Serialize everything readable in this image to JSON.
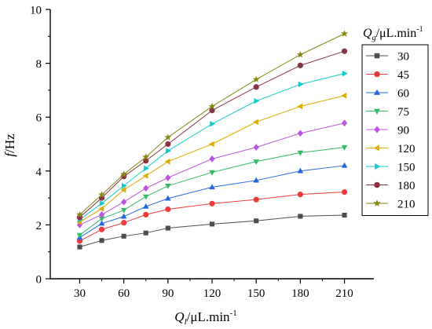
{
  "chart_data": {
    "type": "line",
    "title": "",
    "xlabel": {
      "base": "Q",
      "sub": "l",
      "unit": "/μL.min",
      "sup": "-1"
    },
    "ylabel": {
      "italic": "f",
      "unit": "/Hz"
    },
    "legend_title": {
      "base": "Q",
      "sub": "g",
      "unit": "/μL.min",
      "sup": "-1"
    },
    "legend_position": "top-right",
    "xlim": [
      10,
      230
    ],
    "ylim": [
      0,
      10
    ],
    "x_ticks": [
      30,
      60,
      90,
      120,
      150,
      180,
      210
    ],
    "y_ticks": [
      0,
      2,
      4,
      6,
      8,
      10
    ],
    "grid": false,
    "x": [
      30,
      45,
      60,
      75,
      90,
      120,
      150,
      180,
      210
    ],
    "series": [
      {
        "name": "30",
        "color": "#4d4d4d",
        "marker": "square",
        "values": [
          1.18,
          1.42,
          1.58,
          1.7,
          1.88,
          2.03,
          2.15,
          2.32,
          2.36
        ]
      },
      {
        "name": "45",
        "color": "#ee3b3b",
        "marker": "circle",
        "values": [
          1.4,
          1.83,
          2.08,
          2.38,
          2.58,
          2.79,
          2.94,
          3.13,
          3.22
        ]
      },
      {
        "name": "60",
        "color": "#2266dd",
        "marker": "triangle-up",
        "values": [
          1.53,
          2.05,
          2.31,
          2.68,
          2.98,
          3.4,
          3.65,
          4.0,
          4.2
        ]
      },
      {
        "name": "75",
        "color": "#33bb66",
        "marker": "triangle-down",
        "values": [
          1.62,
          2.23,
          2.55,
          3.05,
          3.45,
          3.95,
          4.35,
          4.68,
          4.88
        ]
      },
      {
        "name": "90",
        "color": "#bb55dd",
        "marker": "diamond",
        "values": [
          2.0,
          2.38,
          2.85,
          3.36,
          3.75,
          4.45,
          4.88,
          5.4,
          5.78
        ]
      },
      {
        "name": "120",
        "color": "#ddaa00",
        "marker": "triangle-left",
        "values": [
          2.1,
          2.6,
          3.3,
          3.82,
          4.35,
          5.0,
          5.82,
          6.4,
          6.8
        ]
      },
      {
        "name": "150",
        "color": "#11cccc",
        "marker": "triangle-right",
        "values": [
          2.2,
          2.8,
          3.45,
          4.1,
          4.75,
          5.75,
          6.6,
          7.22,
          7.62
        ]
      },
      {
        "name": "180",
        "color": "#883344",
        "marker": "circle",
        "values": [
          2.28,
          3.0,
          3.8,
          4.38,
          5.0,
          6.25,
          7.12,
          7.92,
          8.45
        ]
      },
      {
        "name": "210",
        "color": "#888811",
        "marker": "star",
        "values": [
          2.38,
          3.12,
          3.88,
          4.52,
          5.25,
          6.4,
          7.4,
          8.32,
          9.1
        ]
      }
    ]
  }
}
